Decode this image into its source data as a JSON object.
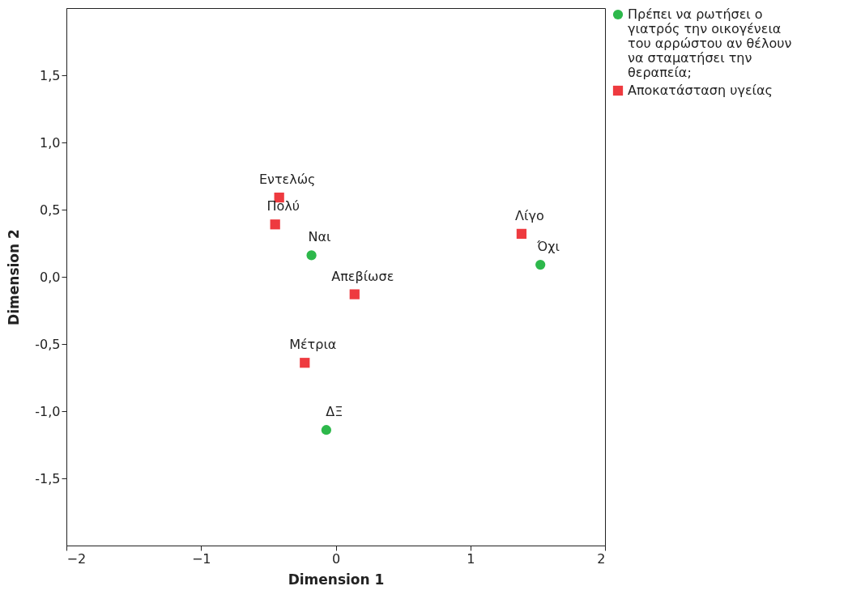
{
  "chart_data": {
    "type": "scatter",
    "xlabel": "Dimension 1",
    "ylabel": "Dimension 2",
    "xlim": [
      -2,
      2
    ],
    "ylim": [
      -2,
      2
    ],
    "xticks": [
      -2,
      -1,
      0,
      1,
      2
    ],
    "yticks": [
      {
        "value": -1.5,
        "label": "-1,5"
      },
      {
        "value": -1,
        "label": "-1,0"
      },
      {
        "value": -0.5,
        "label": "-0,5"
      },
      {
        "value": 0,
        "label": "0,0"
      },
      {
        "value": 0.5,
        "label": "0,5"
      },
      {
        "value": 1,
        "label": "1,0"
      },
      {
        "value": 1.5,
        "label": "1,5"
      }
    ],
    "grid": false,
    "legend": "right",
    "series": [
      {
        "name": "Πρέπει να ρωτήσει ο γιατρός  την οικογένεια του αρρώστου αν θέλουν να σταματήσει την θεραπεία;",
        "color": "#2db84b",
        "marker": "circle",
        "x": [
          -0.18,
          1.52,
          -0.07
        ],
        "values": [
          0.16,
          0.09,
          -1.14
        ]
      },
      {
        "name": "Αποκατάσταση υγείας",
        "color": "#ee3a3f",
        "marker": "square",
        "x": [
          -0.42,
          -0.45,
          0.14,
          -0.23,
          1.38
        ],
        "values": [
          0.59,
          0.39,
          -0.13,
          -0.64,
          0.32
        ]
      }
    ],
    "annotations": [
      {
        "text": "Ναι",
        "x": -0.18,
        "y": 0.16
      },
      {
        "text": "Όχι",
        "x": 1.52,
        "y": 0.09
      },
      {
        "text": "ΔΞ",
        "x": -0.07,
        "y": -1.14
      },
      {
        "text": "Εντελώς",
        "x": -0.42,
        "y": 0.59
      },
      {
        "text": "Πολύ",
        "x": -0.45,
        "y": 0.39
      },
      {
        "text": "Απεβίωσε",
        "x": 0.14,
        "y": -0.13
      },
      {
        "text": "Μέτρια",
        "x": -0.23,
        "y": -0.64
      },
      {
        "text": "Λίγο",
        "x": 1.38,
        "y": 0.32
      }
    ]
  }
}
